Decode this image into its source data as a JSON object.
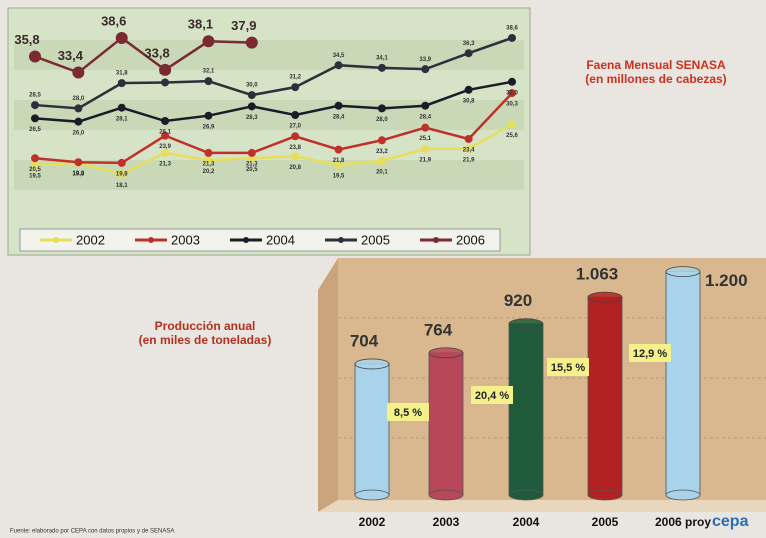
{
  "chart_data": [
    {
      "type": "line",
      "title": "Faena Mensual SENASA",
      "subtitle": "(en millones de cabezas)",
      "categories": [
        null,
        null,
        null,
        null,
        null,
        null,
        null,
        null,
        null,
        null,
        null,
        null
      ],
      "ylim": [
        10,
        41
      ],
      "series": [
        {
          "name": "2002",
          "color": "#e6df5a",
          "values": [
            19.5,
            19.8,
            18.1,
            21.3,
            20.2,
            20.5,
            20.8,
            19.5,
            20.1,
            21.9,
            21.9,
            25.6
          ],
          "value_labels": [
            "19,5",
            "19,8",
            "18,1",
            "21,3",
            "20,2",
            "20,5",
            "20,8",
            "19,5",
            "20,1",
            "21,9",
            "21,9",
            "25,6"
          ]
        },
        {
          "name": "2003",
          "color": "#c0302a",
          "values": [
            20.5,
            19.9,
            19.8,
            23.9,
            21.3,
            21.3,
            23.8,
            21.8,
            23.2,
            25.1,
            23.4,
            30.3
          ],
          "value_labels": [
            "20,5",
            "19,9",
            "19,8",
            "23,9",
            "21,3",
            "21,3",
            "23,8",
            "21,8",
            "23,2",
            "25,1",
            "23,4",
            "30,3"
          ]
        },
        {
          "name": "2004",
          "color": "#1c1c28",
          "values": [
            26.5,
            26.0,
            28.1,
            26.1,
            26.9,
            28.3,
            27.0,
            28.4,
            28.0,
            28.4,
            30.8,
            32.0
          ],
          "value_labels": [
            "26,5",
            "26,0",
            "28,1",
            "26,1",
            "26,9",
            "28,3",
            "27,0",
            "28,4",
            "28,0",
            "28,4",
            "30,8",
            "32,0"
          ]
        },
        {
          "name": "2005",
          "color": "#2e2e3c",
          "values": [
            28.5,
            28.0,
            31.8,
            31.9,
            32.1,
            30.0,
            31.2,
            34.5,
            34.1,
            33.9,
            36.3,
            38.6
          ],
          "value_labels": [
            "28,5",
            "28,0",
            "31,8",
            "31,9",
            "32,1",
            "30,0",
            "31,2",
            "34,5",
            "34,1",
            "33,9",
            "36,3",
            "38,6"
          ]
        },
        {
          "name": "2006",
          "color": "#7a2a30",
          "values": [
            35.8,
            33.4,
            38.6,
            33.8,
            38.1,
            37.9,
            null,
            null,
            null,
            null,
            null,
            null
          ],
          "value_labels": [
            "35,8",
            "33,4",
            "38,6",
            "33,8",
            "38,1",
            "37,9",
            null,
            null,
            null,
            null,
            null,
            null
          ]
        }
      ]
    },
    {
      "type": "bar",
      "title": "Producción anual",
      "subtitle": "(en miles de  toneladas)",
      "categories": [
        "2002",
        "2003",
        "2004",
        "2005",
        "2006 proy"
      ],
      "values": [
        704,
        764,
        920,
        1063,
        1200
      ],
      "value_labels": [
        "704",
        "764",
        "920",
        "1.063",
        "1.200"
      ],
      "colors": [
        "#a9d3ea",
        "#b8475a",
        "#1f5a3a",
        "#b22222",
        "#a9d3ea"
      ],
      "ylim": [
        0,
        1300
      ],
      "annotations": [
        "8,5 %",
        "20,4 %",
        "15,5 %",
        "12,9 %"
      ]
    }
  ],
  "source": "Fuente: elaborado por CEPA con datos propios y de SENASA",
  "logo": "cepa"
}
